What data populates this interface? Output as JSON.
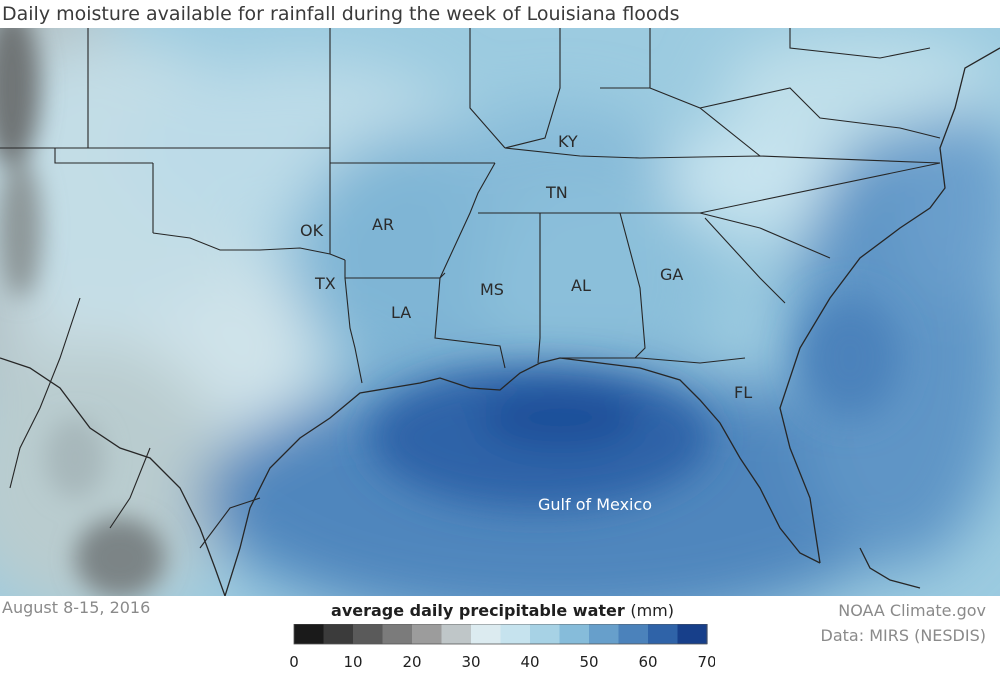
{
  "title": "Daily moisture available for rainfall during the week of Louisiana floods",
  "date_range": "August 8-15, 2016",
  "credit": "NOAA Climate.gov",
  "data_source": "Data: MIRS (NESDIS)",
  "legend": {
    "title": "average daily precipitable water",
    "unit": "(mm)",
    "min": 0,
    "max": 70,
    "ticks": [
      "0",
      "10",
      "20",
      "30",
      "40",
      "50",
      "60",
      "70"
    ],
    "colors": [
      "#1a1a1a",
      "#3b3b3b",
      "#5a5a5a",
      "#7b7b7b",
      "#9c9c9c",
      "#bfc6c8",
      "#dcebf0",
      "#c6e3ee",
      "#a7d2e5",
      "#86bcda",
      "#679fcb",
      "#4b82bb",
      "#2f63a8",
      "#173f8a"
    ]
  },
  "map": {
    "states": [
      "KY",
      "TN",
      "OK",
      "AR",
      "TX",
      "LA",
      "MS",
      "AL",
      "GA",
      "FL"
    ],
    "water_body": "Gulf of Mexico"
  }
}
